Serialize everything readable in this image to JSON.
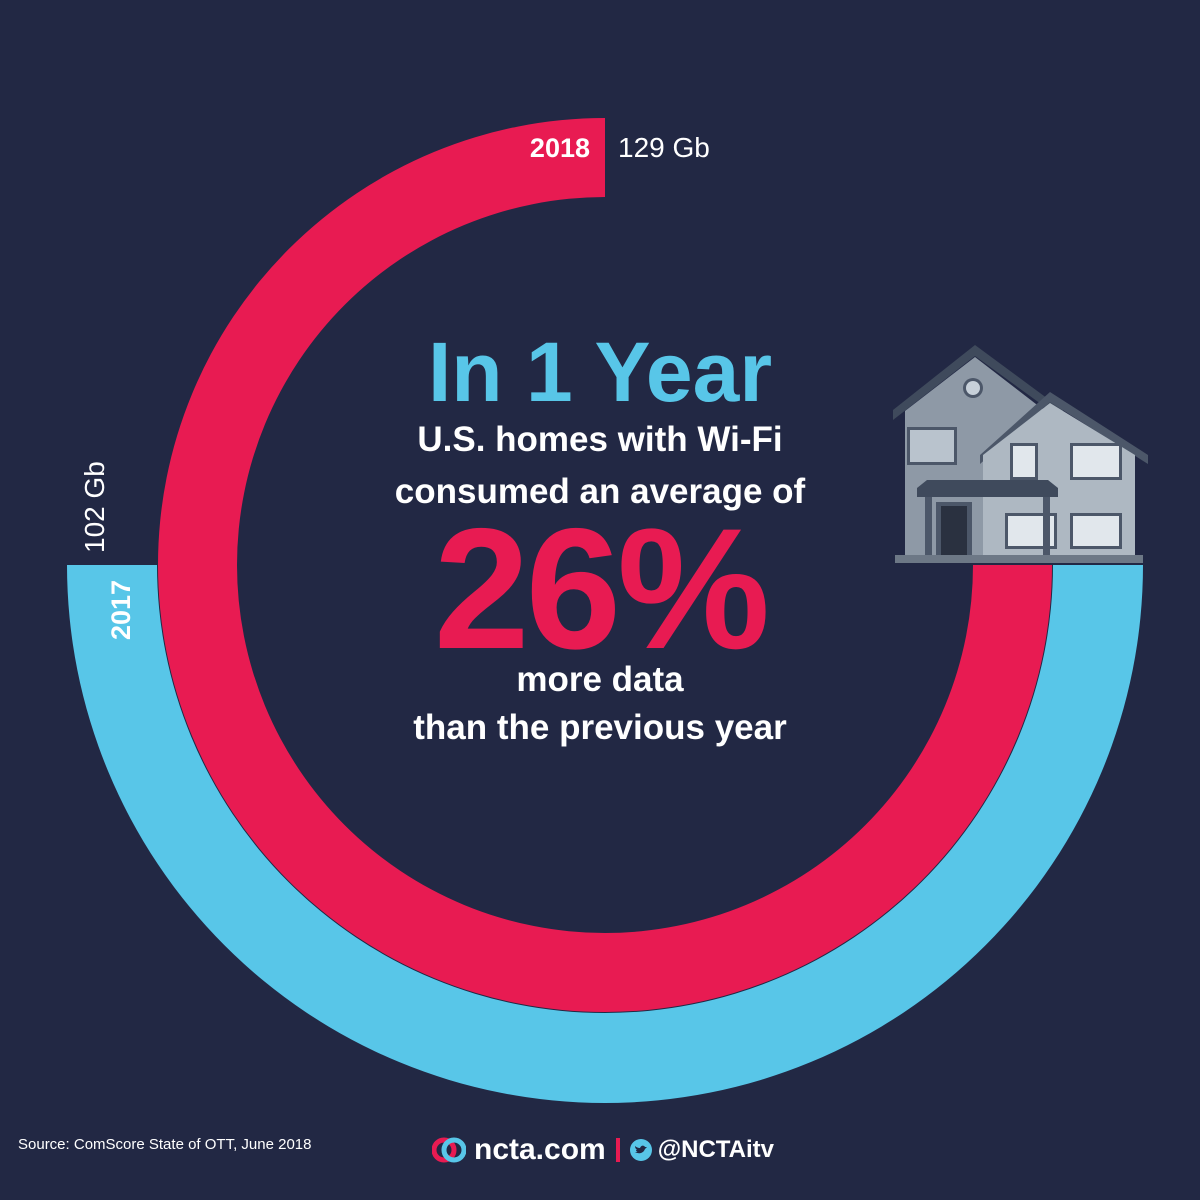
{
  "headline": "In 1 Year",
  "line1": "U.S. homes with Wi-Fi",
  "line2": "consumed an average of",
  "percent": "26%",
  "line4": "more data",
  "line5": "than the previous year",
  "colors": {
    "background": "#222844",
    "accent_red": "#e81b52",
    "accent_blue": "#58c6e8"
  },
  "chart_data": {
    "type": "radial-bar",
    "unit": "Gb",
    "series": [
      {
        "name": "2017",
        "value": 102,
        "display": "102 Gb",
        "color": "#58c6e8"
      },
      {
        "name": "2018",
        "value": 129,
        "display": "129 Gb",
        "color": "#e81b52"
      }
    ]
  },
  "illustration": "house-icon",
  "source": "Source: ComScore State of OTT, June 2018",
  "footer": {
    "site": "ncta.com",
    "handle": "@NCTAitv",
    "logo": "ncta-logo-icon",
    "social": "twitter-icon"
  }
}
